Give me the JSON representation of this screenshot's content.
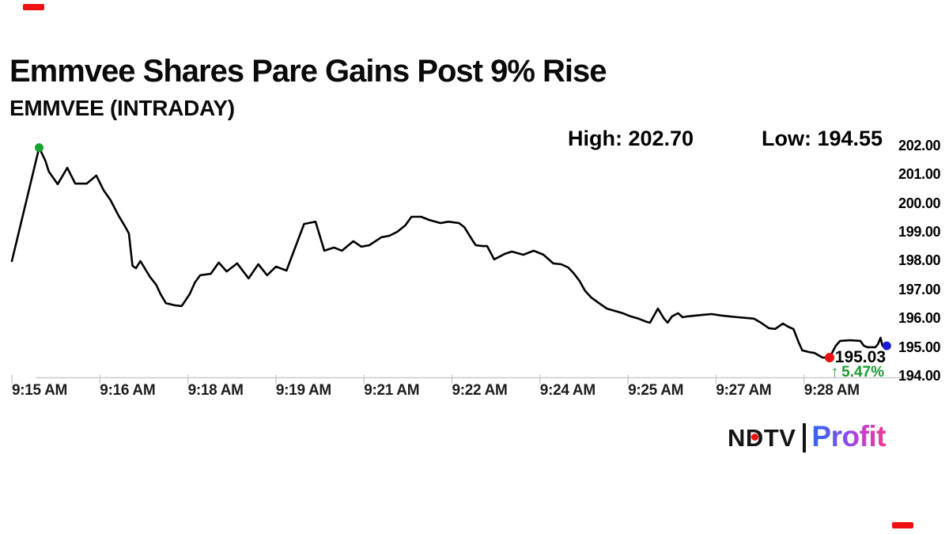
{
  "header": {
    "title": "Emmvee Shares Pare Gains Post 9% Rise",
    "subtitle": "EMMVEE (INTRADAY)",
    "high_label": "High: 202.70",
    "low_label": "Low: 194.55"
  },
  "chart_data": {
    "type": "line",
    "title": "EMMVEE (INTRADAY)",
    "x_unit": "tick index (ticks evenly spaced; labels below)",
    "x_tick_labels": [
      "9:15 AM",
      "9:16 AM",
      "9:18 AM",
      "9:19 AM",
      "9:21 AM",
      "9:22 AM",
      "9:24 AM",
      "9:25 AM",
      "9:27 AM",
      "9:28 AM"
    ],
    "y_tick_labels": [
      "202.00",
      "201.00",
      "200.00",
      "199.00",
      "198.00",
      "197.00",
      "196.00",
      "195.00",
      "194.00"
    ],
    "ylim": [
      194.0,
      202.0
    ],
    "grid": false,
    "legend": "none",
    "line_color": "#000000",
    "axis_color": "#c9c9c9",
    "high": 202.7,
    "low": 194.55,
    "last": 195.03,
    "change_pct": 5.47,
    "points": [
      [
        0,
        198.01
      ],
      [
        0.31,
        201.95
      ],
      [
        0.38,
        201.5
      ],
      [
        0.42,
        201.12
      ],
      [
        0.52,
        200.68
      ],
      [
        0.63,
        201.25
      ],
      [
        0.72,
        200.7
      ],
      [
        0.85,
        200.7
      ],
      [
        0.96,
        200.98
      ],
      [
        1.04,
        200.48
      ],
      [
        1.12,
        200.13
      ],
      [
        1.21,
        199.6
      ],
      [
        1.29,
        199.19
      ],
      [
        1.33,
        198.97
      ],
      [
        1.37,
        197.85
      ],
      [
        1.41,
        197.76
      ],
      [
        1.46,
        198.01
      ],
      [
        1.57,
        197.46
      ],
      [
        1.64,
        197.19
      ],
      [
        1.69,
        196.86
      ],
      [
        1.75,
        196.55
      ],
      [
        1.86,
        196.47
      ],
      [
        1.93,
        196.45
      ],
      [
        2.02,
        196.86
      ],
      [
        2.08,
        197.27
      ],
      [
        2.14,
        197.52
      ],
      [
        2.26,
        197.57
      ],
      [
        2.35,
        197.96
      ],
      [
        2.44,
        197.65
      ],
      [
        2.5,
        197.79
      ],
      [
        2.56,
        197.93
      ],
      [
        2.69,
        197.41
      ],
      [
        2.8,
        197.9
      ],
      [
        2.9,
        197.52
      ],
      [
        3.0,
        197.82
      ],
      [
        3.12,
        197.68
      ],
      [
        3.32,
        199.3
      ],
      [
        3.45,
        199.38
      ],
      [
        3.55,
        198.37
      ],
      [
        3.66,
        198.48
      ],
      [
        3.75,
        198.37
      ],
      [
        3.88,
        198.7
      ],
      [
        3.97,
        198.51
      ],
      [
        4.06,
        198.56
      ],
      [
        4.2,
        198.84
      ],
      [
        4.29,
        198.89
      ],
      [
        4.38,
        199.03
      ],
      [
        4.47,
        199.25
      ],
      [
        4.54,
        199.55
      ],
      [
        4.65,
        199.55
      ],
      [
        4.74,
        199.44
      ],
      [
        4.87,
        199.33
      ],
      [
        4.96,
        199.38
      ],
      [
        5.08,
        199.33
      ],
      [
        5.14,
        199.19
      ],
      [
        5.24,
        198.7
      ],
      [
        5.27,
        198.56
      ],
      [
        5.35,
        198.53
      ],
      [
        5.4,
        198.53
      ],
      [
        5.48,
        198.07
      ],
      [
        5.6,
        198.26
      ],
      [
        5.68,
        198.34
      ],
      [
        5.81,
        198.23
      ],
      [
        5.93,
        198.37
      ],
      [
        6.04,
        198.23
      ],
      [
        6.15,
        197.93
      ],
      [
        6.24,
        197.9
      ],
      [
        6.32,
        197.79
      ],
      [
        6.38,
        197.6
      ],
      [
        6.45,
        197.32
      ],
      [
        6.51,
        196.99
      ],
      [
        6.58,
        196.75
      ],
      [
        6.67,
        196.55
      ],
      [
        6.76,
        196.36
      ],
      [
        6.85,
        196.28
      ],
      [
        6.94,
        196.2
      ],
      [
        7.03,
        196.09
      ],
      [
        7.12,
        196.01
      ],
      [
        7.21,
        195.9
      ],
      [
        7.25,
        195.87
      ],
      [
        7.34,
        196.36
      ],
      [
        7.41,
        196.01
      ],
      [
        7.45,
        195.87
      ],
      [
        7.5,
        196.09
      ],
      [
        7.57,
        196.2
      ],
      [
        7.62,
        196.06
      ],
      [
        7.68,
        196.09
      ],
      [
        7.84,
        196.14
      ],
      [
        7.95,
        196.17
      ],
      [
        8.06,
        196.12
      ],
      [
        8.15,
        196.09
      ],
      [
        8.25,
        196.06
      ],
      [
        8.36,
        196.03
      ],
      [
        8.43,
        196.01
      ],
      [
        8.51,
        195.87
      ],
      [
        8.6,
        195.68
      ],
      [
        8.67,
        195.65
      ],
      [
        8.76,
        195.84
      ],
      [
        8.82,
        195.73
      ],
      [
        8.88,
        195.65
      ],
      [
        8.94,
        195.18
      ],
      [
        8.98,
        194.91
      ],
      [
        9.06,
        194.85
      ],
      [
        9.12,
        194.82
      ],
      [
        9.21,
        194.66
      ],
      [
        9.29,
        194.66
      ],
      [
        9.36,
        195.07
      ],
      [
        9.41,
        195.24
      ],
      [
        9.52,
        195.26
      ],
      [
        9.64,
        195.24
      ],
      [
        9.68,
        195.07
      ],
      [
        9.72,
        195.02
      ],
      [
        9.81,
        195.02
      ],
      [
        9.84,
        195.13
      ],
      [
        9.87,
        195.35
      ],
      [
        9.89,
        195.07
      ],
      [
        9.94,
        195.07
      ]
    ],
    "markers": [
      {
        "name": "high-marker-dot",
        "x": 0.31,
        "price": 201.95,
        "color": "#18a12f",
        "r": 5.5
      },
      {
        "name": "low-marker-dot",
        "x": 9.29,
        "price": 194.66,
        "color": "#ee1111",
        "r": 6
      },
      {
        "name": "last-marker-dot",
        "x": 9.94,
        "price": 195.07,
        "color": "#1b1bd0",
        "r": 5.5
      }
    ],
    "annotation": {
      "price_text": "195.03",
      "arrow": "↑",
      "change_text": "5.47%"
    }
  },
  "footer_logo": {
    "ndtv": "NDTV",
    "profit": "Profit",
    "ndtv_dot_color": "#e8140c",
    "profit_gradient": [
      "#2f68f0",
      "#7a50ee",
      "#c13fd6",
      "#f5378f"
    ]
  },
  "corner_marker_color": "#ee1111"
}
